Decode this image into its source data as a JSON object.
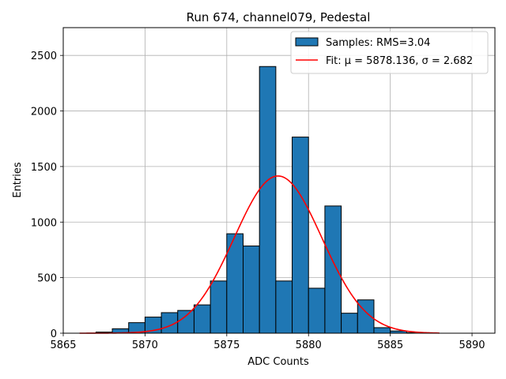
{
  "chart_data": {
    "type": "bar",
    "title": "Run 674, channel079, Pedestal",
    "xlabel": "ADC Counts",
    "ylabel": "Entries",
    "xlim": [
      5865.0,
      5891.4
    ],
    "ylim": [
      0,
      2750
    ],
    "xticks": [
      5865,
      5870,
      5875,
      5880,
      5885,
      5890
    ],
    "yticks": [
      0,
      500,
      1000,
      1500,
      2000,
      2500
    ],
    "grid": true,
    "legend_position": "top-right",
    "bin_width": 1,
    "histogram": {
      "name": "Samples: RMS=3.04",
      "color": "#1f77b4",
      "edgecolor": "#000000",
      "bins": [
        {
          "left": 5867,
          "value": 10
        },
        {
          "left": 5868,
          "value": 40
        },
        {
          "left": 5869,
          "value": 95
        },
        {
          "left": 5870,
          "value": 145
        },
        {
          "left": 5871,
          "value": 185
        },
        {
          "left": 5872,
          "value": 205
        },
        {
          "left": 5873,
          "value": 255
        },
        {
          "left": 5874,
          "value": 470
        },
        {
          "left": 5875,
          "value": 895
        },
        {
          "left": 5876,
          "value": 785
        },
        {
          "left": 5877,
          "value": 2400
        },
        {
          "left": 5878,
          "value": 470
        },
        {
          "left": 5879,
          "value": 1765
        },
        {
          "left": 5880,
          "value": 405
        },
        {
          "left": 5881,
          "value": 1145
        },
        {
          "left": 5882,
          "value": 180
        },
        {
          "left": 5883,
          "value": 300
        },
        {
          "left": 5884,
          "value": 50
        },
        {
          "left": 5885,
          "value": 20
        },
        {
          "left": 5886,
          "value": 5
        }
      ]
    },
    "fit": {
      "name": "Fit: μ = 5878.136, σ = 2.682",
      "color": "#ff0000",
      "mu": 5878.136,
      "sigma": 2.682,
      "amplitude": 1415,
      "x_range": [
        5866,
        5888
      ]
    }
  }
}
